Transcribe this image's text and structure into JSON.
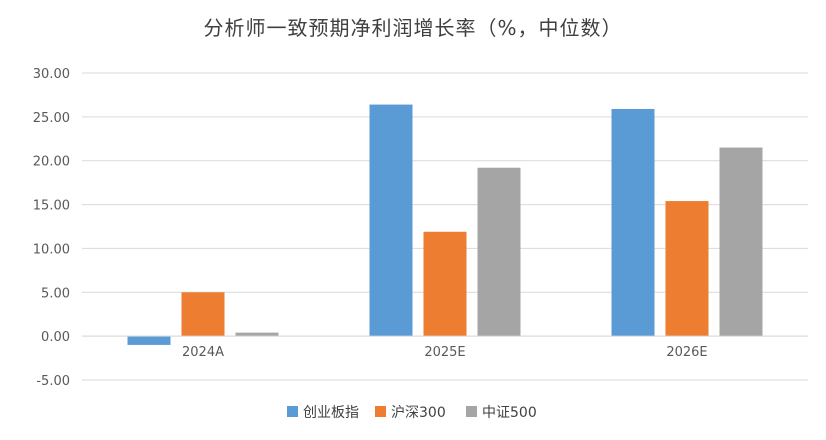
{
  "chart_data": {
    "type": "bar",
    "title": "分析师一致预期净利润增长率（%，中位数）",
    "categories": [
      "2024A",
      "2025E",
      "2026E"
    ],
    "series": [
      {
        "name": "创业板指",
        "color": "#5b9bd5",
        "values": [
          -1.0,
          26.4,
          25.9
        ]
      },
      {
        "name": "沪深300",
        "color": "#ed7d31",
        "values": [
          5.0,
          11.9,
          15.4
        ]
      },
      {
        "name": "中证500",
        "color": "#a5a5a5",
        "values": [
          0.4,
          19.2,
          21.5
        ]
      }
    ],
    "yticks": [
      "-5.00",
      "0.00",
      "5.00",
      "10.00",
      "15.00",
      "20.00",
      "25.00",
      "30.00"
    ],
    "ylim": [
      -5,
      30
    ],
    "grid": true,
    "legend_position": "bottom"
  }
}
